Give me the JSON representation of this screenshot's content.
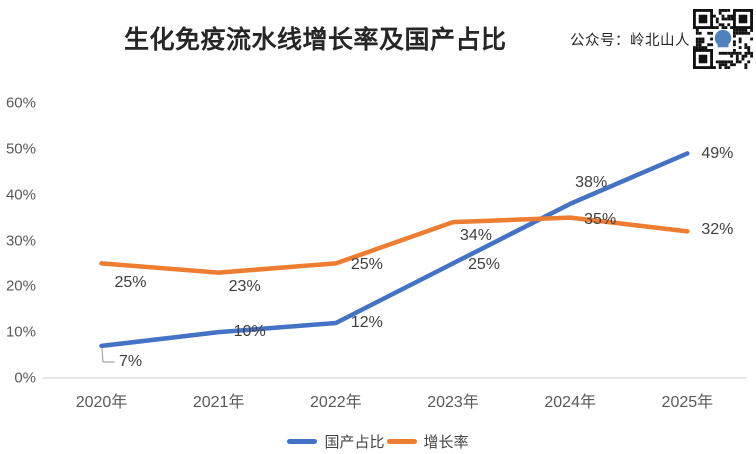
{
  "header": {
    "account_label": "公众号：岭北山人"
  },
  "chart_data": {
    "type": "line",
    "title": "生化免疫流水线增长率及国产占比",
    "categories": [
      "2020年",
      "2021年",
      "2022年",
      "2023年",
      "2024年",
      "2025年"
    ],
    "series": [
      {
        "name": "国产占比",
        "values": [
          7,
          10,
          12,
          25,
          38,
          49
        ],
        "color": "#4472C4"
      },
      {
        "name": "增长率",
        "values": [
          25,
          23,
          25,
          34,
          35,
          32
        ],
        "color": "#ED7D31"
      }
    ],
    "y_ticks": [
      "0%",
      "10%",
      "20%",
      "30%",
      "40%",
      "50%",
      "60%"
    ],
    "ylim": [
      0,
      60
    ],
    "label_suffix": "%",
    "legend_position": "bottom",
    "grid": false,
    "background_color": "#ffffff",
    "axis_line_color": "#D9D9D9",
    "leader_line_color": "#A6A6A6",
    "tick_label_color": "#595959",
    "data_label_color": "#404040",
    "qr_colors": {
      "dark": "#111111",
      "logo": "#4f81bd"
    }
  }
}
